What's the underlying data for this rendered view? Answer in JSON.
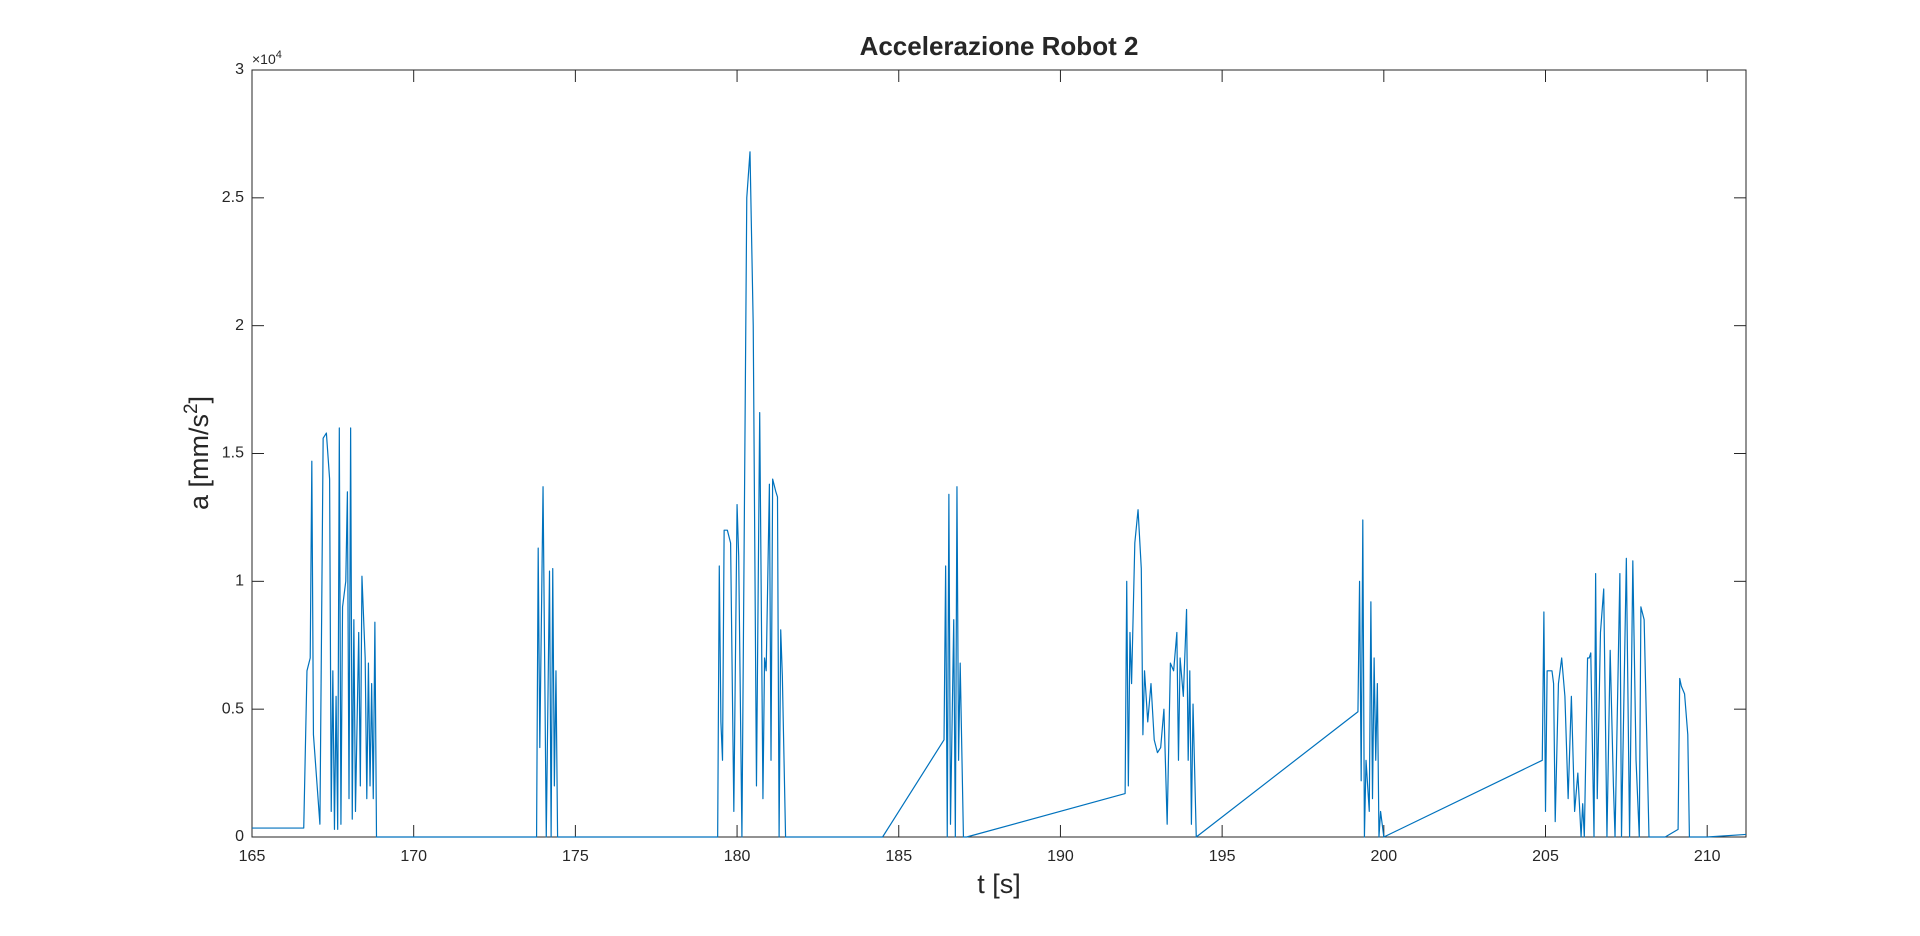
{
  "chart_data": {
    "type": "line",
    "title": "Accelerazione Robot 2",
    "xlabel": "t [s]",
    "ylabel": [
      "a [mm/s",
      "2",
      "]"
    ],
    "y_multiplier": [
      "×10",
      "4"
    ],
    "color": "#0072bd",
    "xlim": [
      165,
      211.2
    ],
    "ylim": [
      0,
      30000
    ],
    "xticks": [
      165,
      170,
      175,
      180,
      185,
      190,
      195,
      200,
      205,
      210
    ],
    "yticks": [
      0,
      {
        "value": 5000,
        "label": "0.5"
      },
      {
        "value": 10000,
        "label": "1"
      },
      {
        "value": 15000,
        "label": "1.5"
      },
      {
        "value": 20000,
        "label": "2"
      },
      {
        "value": 25000,
        "label": "2.5"
      },
      {
        "value": 30000,
        "label": "3"
      }
    ],
    "x": [
      165,
      166.6,
      166.7,
      166.8,
      166.85,
      166.9,
      167.1,
      167.2,
      167.3,
      167.4,
      167.45,
      167.5,
      167.55,
      167.6,
      167.65,
      167.7,
      167.75,
      167.8,
      167.9,
      167.95,
      168,
      168.05,
      168.1,
      168.15,
      168.2,
      168.3,
      168.35,
      168.4,
      168.5,
      168.55,
      168.6,
      168.65,
      168.7,
      168.75,
      168.8,
      168.85,
      173.8,
      173.85,
      173.9,
      174,
      174.1,
      174.2,
      174.25,
      174.3,
      174.35,
      174.4,
      174.45,
      179.4,
      179.45,
      179.5,
      179.55,
      179.6,
      179.7,
      179.8,
      179.9,
      180,
      180.05,
      180.15,
      180.3,
      180.4,
      180.5,
      180.6,
      180.7,
      180.8,
      180.85,
      180.9,
      181,
      181.05,
      181.1,
      181.2,
      181.25,
      181.3,
      181.35,
      181.4,
      181.5,
      184.5,
      186.4,
      186.45,
      186.5,
      186.55,
      186.6,
      186.7,
      186.75,
      186.8,
      186.85,
      186.9,
      187,
      187.1,
      192,
      192.05,
      192.1,
      192.15,
      192.2,
      192.3,
      192.4,
      192.5,
      192.55,
      192.6,
      192.7,
      192.8,
      192.9,
      193,
      193.1,
      193.2,
      193.3,
      193.4,
      193.5,
      193.6,
      193.65,
      193.7,
      193.8,
      193.9,
      193.95,
      194,
      194.05,
      194.1,
      194.2,
      199.2,
      199.25,
      199.3,
      199.35,
      199.4,
      199.45,
      199.55,
      199.6,
      199.65,
      199.7,
      199.75,
      199.8,
      199.85,
      199.9,
      200,
      204.9,
      204.95,
      205,
      205.05,
      205.2,
      205.25,
      205.3,
      205.4,
      205.5,
      205.6,
      205.7,
      205.8,
      205.9,
      206,
      206.1,
      206.15,
      206.2,
      206.3,
      206.35,
      206.4,
      206.5,
      206.55,
      206.6,
      206.7,
      206.8,
      206.9,
      207,
      207.1,
      207.15,
      207.3,
      207.35,
      207.5,
      207.6,
      207.7,
      207.8,
      207.9,
      207.95,
      208.05,
      208.2,
      208.7,
      209.1,
      209.15,
      209.2,
      209.3,
      209.4,
      209.45,
      210,
      211.2
    ],
    "values": [
      350,
      350,
      6500,
      7000,
      14700,
      4000,
      500,
      15600,
      15800,
      14000,
      1000,
      6500,
      300,
      5500,
      300,
      16000,
      500,
      9000,
      10000,
      13500,
      1500,
      16000,
      700,
      8500,
      1000,
      8000,
      2000,
      10200,
      7000,
      1500,
      6800,
      2000,
      6000,
      1500,
      8400,
      0,
      0,
      11300,
      3500,
      13700,
      0,
      10400,
      0,
      10500,
      2000,
      6500,
      0,
      0,
      10600,
      4500,
      3000,
      12000,
      12000,
      11500,
      1000,
      13000,
      11000,
      0,
      25000,
      26800,
      20000,
      2000,
      16600,
      1500,
      7000,
      6500,
      13800,
      3000,
      14000,
      13500,
      13300,
      0,
      8100,
      6300,
      0,
      0,
      3800,
      10600,
      0,
      13400,
      500,
      8500,
      0,
      13700,
      3000,
      6800,
      0,
      0,
      1700,
      10000,
      2000,
      8000,
      6000,
      11500,
      12800,
      10500,
      4000,
      6500,
      4500,
      6000,
      3800,
      3300,
      3500,
      5000,
      500,
      6800,
      6500,
      8000,
      3000,
      7000,
      5500,
      8900,
      3000,
      6500,
      500,
      5200,
      0,
      4900,
      10000,
      2200,
      12400,
      0,
      3000,
      1000,
      9200,
      1500,
      7000,
      3000,
      6000,
      0,
      1000,
      0,
      3000,
      8800,
      1000,
      6500,
      6500,
      6000,
      600,
      6000,
      7000,
      5500,
      1500,
      5500,
      1000,
      2500,
      0,
      1300,
      0,
      7000,
      7000,
      7200,
      0,
      10300,
      1500,
      8000,
      9700,
      0,
      7300,
      2000,
      0,
      10300,
      0,
      10900,
      0,
      10800,
      3000,
      0,
      9000,
      8500,
      0,
      0,
      300,
      6200,
      5900,
      5600,
      4000,
      0,
      0,
      100
    ]
  }
}
